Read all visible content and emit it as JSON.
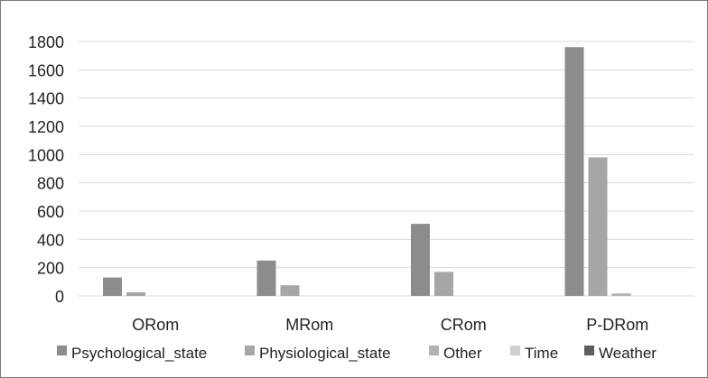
{
  "chart_data": {
    "type": "bar",
    "title": "",
    "xlabel": "",
    "ylabel": "",
    "ylim": [
      0,
      1800
    ],
    "yticks": [
      0,
      200,
      400,
      600,
      800,
      1000,
      1200,
      1400,
      1600,
      1800
    ],
    "grid": true,
    "legend_position": "bottom",
    "categories": [
      "ORom",
      "MRom",
      "CRom",
      "P-DRom"
    ],
    "series": [
      {
        "name": "Psychological_state",
        "color": "#8c8c8c",
        "values": [
          130,
          250,
          510,
          1760
        ]
      },
      {
        "name": "Physiological_state",
        "color": "#a6a6a6",
        "values": [
          25,
          75,
          170,
          980
        ]
      },
      {
        "name": "Other",
        "color": "#b3b3b3",
        "values": [
          0,
          0,
          0,
          18
        ]
      },
      {
        "name": "Time",
        "color": "#cfcfcf",
        "values": [
          0,
          0,
          0,
          0
        ]
      },
      {
        "name": "Weather",
        "color": "#5e5e5e",
        "values": [
          0,
          0,
          0,
          0
        ]
      }
    ]
  }
}
